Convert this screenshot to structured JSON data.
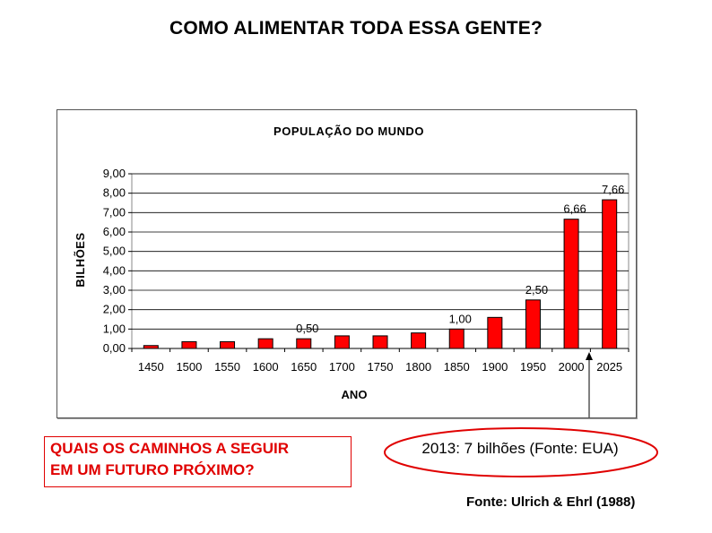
{
  "slide": {
    "title": "COMO ALIMENTAR TODA ESSA GENTE?",
    "question_line1": "QUAIS OS CAMINHOS A SEGUIR",
    "question_line2": "EM UM FUTURO PRÓXIMO?",
    "callout": "2013: 7 bilhões (Fonte: EUA)",
    "source": "Fonte: Ulrich & Ehrl (1988)",
    "accent_color": "#e00000"
  },
  "chart_data": {
    "type": "bar",
    "title": "POPULAÇÃO DO MUNDO",
    "xlabel": "ANO",
    "ylabel": "BILHÕES",
    "ylim": [
      0,
      9
    ],
    "yticks": [
      "0,00",
      "1,00",
      "2,00",
      "3,00",
      "4,00",
      "5,00",
      "6,00",
      "7,00",
      "8,00",
      "9,00"
    ],
    "categories": [
      "1450",
      "1500",
      "1550",
      "1600",
      "1650",
      "1700",
      "1750",
      "1800",
      "1850",
      "1900",
      "1950",
      "2000",
      "2025"
    ],
    "values": [
      0.15,
      0.35,
      0.35,
      0.5,
      0.5,
      0.65,
      0.65,
      0.8,
      1.0,
      1.6,
      2.5,
      6.66,
      7.66
    ],
    "data_labels": [
      "",
      "",
      "",
      "",
      "0,50",
      "",
      "",
      "",
      "1,00",
      "",
      "2,50",
      "6,66",
      "7,66"
    ],
    "bar_color": "#ff0000",
    "grid": true
  }
}
